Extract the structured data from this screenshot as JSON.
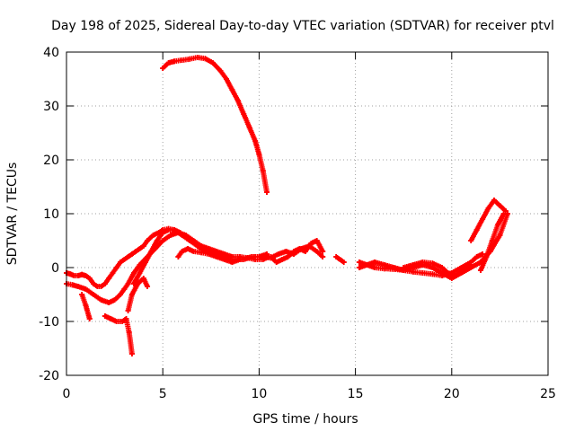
{
  "chart_data": {
    "type": "scatter",
    "title": "Day 198 of 2025, Sidereal Day-to-day VTEC variation (SDTVAR) for receiver ptvl",
    "xlabel": "GPS time / hours",
    "ylabel": "SDTVAR / TECUs",
    "xlim": [
      0,
      25
    ],
    "ylim": [
      -20,
      40
    ],
    "xticks": [
      0,
      5,
      10,
      15,
      20,
      25
    ],
    "yticks": [
      -20,
      -10,
      0,
      10,
      20,
      30,
      40
    ],
    "xtick_labels": [
      "0",
      "5",
      "10",
      "15",
      "20",
      "25"
    ],
    "ytick_labels": [
      "-20",
      "-10",
      "0",
      "10",
      "20",
      "30",
      "40"
    ],
    "grid": true,
    "marker": "+",
    "color": "#ff0000",
    "series": [
      {
        "name": "arc1",
        "x": [
          5.0,
          5.3,
          5.6,
          6.0,
          6.4,
          6.8,
          7.2,
          7.6,
          8.0,
          8.3,
          8.6,
          8.9,
          9.2,
          9.5,
          9.8,
          10.0,
          10.2,
          10.4
        ],
        "y": [
          37,
          38,
          38.3,
          38.5,
          38.7,
          39,
          38.8,
          38,
          36.5,
          35,
          33,
          31,
          28.5,
          26,
          23.5,
          21,
          18,
          14
        ]
      },
      {
        "name": "arc2",
        "x": [
          0.0,
          0.2,
          0.4,
          0.6,
          0.8,
          1.0,
          1.2,
          1.4,
          1.6,
          1.8,
          2.0,
          2.2,
          2.4,
          2.6,
          2.8,
          3.0,
          3.2,
          3.4,
          3.6,
          3.8,
          4.0,
          4.2,
          4.5,
          4.8,
          5.0,
          5.3,
          5.6,
          6.0,
          6.4,
          6.8,
          7.2,
          7.6,
          8.0,
          8.4,
          8.8,
          9.2,
          9.6,
          10.0,
          10.4
        ],
        "y": [
          -1,
          -1.2,
          -1.5,
          -1.5,
          -1.3,
          -1.5,
          -2,
          -3,
          -3.5,
          -3.5,
          -3,
          -2,
          -1,
          0,
          1,
          1.5,
          2,
          2.5,
          3,
          3.5,
          4,
          5,
          6,
          6.5,
          7,
          7.2,
          7,
          6,
          5,
          4,
          3,
          2.5,
          2,
          1.5,
          1.5,
          1.5,
          2,
          2,
          2.5
        ]
      },
      {
        "name": "arc3",
        "x": [
          0.0,
          0.3,
          0.6,
          1.0,
          1.4,
          1.8,
          2.2,
          2.5,
          2.8,
          3.0,
          3.2,
          3.5,
          3.8,
          4.2,
          4.6,
          5.0,
          5.4,
          5.8,
          6.2,
          6.6,
          7.0,
          7.4,
          7.8,
          8.2,
          8.6,
          9.0,
          9.4,
          9.8,
          10.2,
          10.5
        ],
        "y": [
          -3,
          -3.2,
          -3.5,
          -4,
          -5,
          -6,
          -6.5,
          -6,
          -5,
          -4,
          -3,
          -1,
          0.5,
          2,
          3.5,
          5,
          6,
          6.5,
          6,
          5,
          4,
          3.5,
          3,
          2.5,
          2,
          2,
          1.8,
          1.5,
          1.5,
          2
        ]
      },
      {
        "name": "arc4",
        "x": [
          0.8,
          1.0,
          1.2
        ],
        "y": [
          -5,
          -7,
          -9.5
        ]
      },
      {
        "name": "arc5",
        "x": [
          2.0,
          2.3,
          2.6,
          2.9,
          3.1,
          3.25,
          3.4
        ],
        "y": [
          -9,
          -9.5,
          -10,
          -10,
          -9.5,
          -12,
          -16
        ]
      },
      {
        "name": "arc6",
        "x": [
          3.2,
          3.4,
          3.7,
          4.0,
          4.2
        ],
        "y": [
          -8,
          -5,
          -3,
          -2,
          -3.5
        ]
      },
      {
        "name": "arc7",
        "x": [
          3.5,
          3.8,
          4.1,
          4.4,
          4.7,
          5.0,
          5.3,
          5.6,
          5.9
        ],
        "y": [
          -3,
          -1,
          1,
          3,
          5,
          6.5,
          7,
          7,
          6.5
        ]
      },
      {
        "name": "arc8",
        "x": [
          5.8,
          6.0,
          6.3,
          6.6,
          7.0,
          7.4,
          7.8,
          8.2,
          8.6,
          9.0,
          9.4,
          9.8,
          10.2,
          10.6,
          11.0,
          11.4,
          11.8,
          12.2,
          12.6,
          13.0,
          13.3
        ],
        "y": [
          2,
          3,
          3.5,
          3,
          2.8,
          2.5,
          2,
          1.5,
          1,
          1.5,
          1.8,
          2,
          2,
          1.8,
          2.5,
          3,
          2.5,
          3.5,
          4,
          3,
          2
        ]
      },
      {
        "name": "arc9",
        "x": [
          10.6,
          10.9,
          11.2,
          11.5,
          11.8,
          12.1,
          12.4,
          12.7,
          13.0,
          13.3
        ],
        "y": [
          2,
          1,
          1.5,
          2,
          3,
          3.5,
          3,
          4.5,
          5,
          3
        ]
      },
      {
        "name": "arc10",
        "x": [
          14.0,
          14.2,
          14.4
        ],
        "y": [
          2,
          1.5,
          1
        ]
      },
      {
        "name": "arc11",
        "x": [
          15.2,
          15.6,
          16.0,
          16.5,
          17.0,
          17.5,
          18.0,
          18.5,
          19.0,
          19.5,
          20.0,
          20.5,
          21.0,
          21.3,
          21.6
        ],
        "y": [
          1,
          0.5,
          0,
          -0.2,
          -0.3,
          -0.5,
          -0.8,
          -1,
          -1.2,
          -1.5,
          -1,
          0,
          1,
          2,
          2.5
        ]
      },
      {
        "name": "arc12",
        "x": [
          15.2,
          15.6,
          16.0,
          16.5,
          17.0,
          17.5,
          18.0,
          18.5,
          19.0,
          19.5,
          20.0,
          20.5,
          21.0,
          21.5,
          22.0,
          22.5,
          22.9
        ],
        "y": [
          0,
          0.5,
          1,
          0.5,
          0,
          -0.5,
          0,
          0.5,
          0,
          -1,
          -2,
          -1,
          0,
          1,
          3,
          6,
          10
        ]
      },
      {
        "name": "arc13",
        "x": [
          17.5,
          18.0,
          18.5,
          19.0,
          19.5,
          19.8,
          20.2,
          20.6,
          21.0
        ],
        "y": [
          0,
          0.5,
          1,
          0.8,
          0,
          -1,
          -1.5,
          -0.5,
          0.5
        ]
      },
      {
        "name": "arc14",
        "x": [
          21.0,
          21.3,
          21.6,
          21.9,
          22.2,
          22.5,
          22.8
        ],
        "y": [
          5,
          7,
          9,
          11,
          12.5,
          11.5,
          10.5
        ]
      },
      {
        "name": "arc15",
        "x": [
          21.5,
          21.8,
          22.1,
          22.4,
          22.7
        ],
        "y": [
          -0.5,
          2,
          5,
          8,
          10
        ]
      }
    ]
  }
}
